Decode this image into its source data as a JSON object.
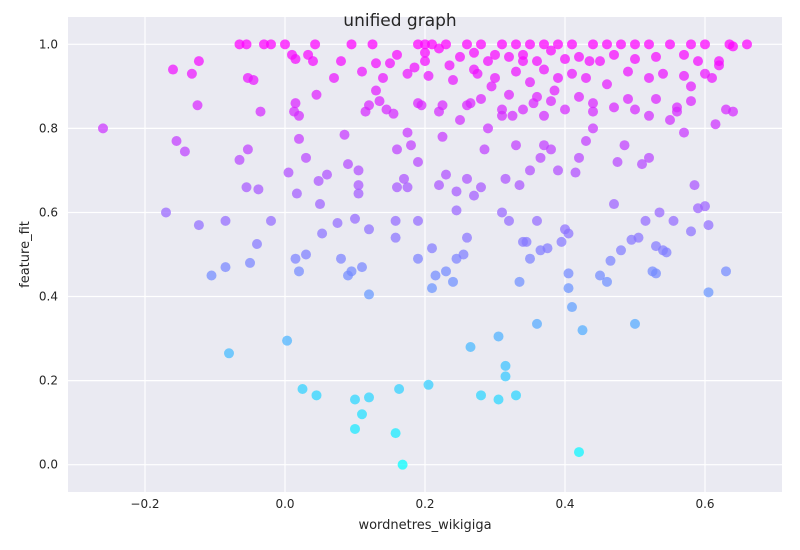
{
  "chart_data": {
    "type": "scatter",
    "title": "unified graph",
    "xlabel": "wordnetres_wikigiga",
    "ylabel": "feature_fit",
    "xlim": [
      -0.31,
      0.71
    ],
    "ylim": [
      -0.065,
      1.065
    ],
    "xticks": [
      -0.2,
      0.0,
      0.2,
      0.4,
      0.6
    ],
    "xtick_labels": [
      "−0.2",
      "0.0",
      "0.2",
      "0.4",
      "0.6"
    ],
    "yticks": [
      0.0,
      0.2,
      0.4,
      0.6,
      0.8,
      1.0
    ],
    "ytick_labels": [
      "0.0",
      "0.2",
      "0.4",
      "0.6",
      "0.8",
      "1.0"
    ],
    "grid": true,
    "colormap": "cool",
    "colors": {
      "background": "#EAEAF2",
      "grid": "#FFFFFF",
      "low": "#00FFFF",
      "high": "#FF00FF"
    },
    "points": [
      [
        -0.26,
        0.8
      ],
      [
        -0.17,
        0.6
      ],
      [
        -0.16,
        0.94
      ],
      [
        -0.155,
        0.77
      ],
      [
        -0.143,
        0.745
      ],
      [
        -0.133,
        0.93
      ],
      [
        -0.125,
        0.855
      ],
      [
        -0.123,
        0.96
      ],
      [
        -0.123,
        0.57
      ],
      [
        -0.105,
        0.45
      ],
      [
        -0.085,
        0.58
      ],
      [
        -0.085,
        0.47
      ],
      [
        -0.08,
        0.265
      ],
      [
        -0.065,
        1.0
      ],
      [
        -0.065,
        0.725
      ],
      [
        -0.055,
        1.0
      ],
      [
        -0.055,
        0.66
      ],
      [
        -0.053,
        0.75
      ],
      [
        -0.053,
        0.92
      ],
      [
        -0.05,
        0.48
      ],
      [
        -0.045,
        0.915
      ],
      [
        -0.04,
        0.525
      ],
      [
        -0.038,
        0.655
      ],
      [
        -0.035,
        0.84
      ],
      [
        -0.03,
        1.0
      ],
      [
        -0.02,
        1.0
      ],
      [
        -0.02,
        0.58
      ],
      [
        0.0,
        1.0
      ],
      [
        0.003,
        0.295
      ],
      [
        0.005,
        0.695
      ],
      [
        0.01,
        0.975
      ],
      [
        0.013,
        0.84
      ],
      [
        0.015,
        0.86
      ],
      [
        0.015,
        0.965
      ],
      [
        0.015,
        0.49
      ],
      [
        0.017,
        0.645
      ],
      [
        0.02,
        0.46
      ],
      [
        0.02,
        0.775
      ],
      [
        0.02,
        0.83
      ],
      [
        0.025,
        0.18
      ],
      [
        0.03,
        0.73
      ],
      [
        0.03,
        0.5
      ],
      [
        0.033,
        0.975
      ],
      [
        0.04,
        0.96
      ],
      [
        0.043,
        1.0
      ],
      [
        0.045,
        0.165
      ],
      [
        0.045,
        0.88
      ],
      [
        0.048,
        0.675
      ],
      [
        0.05,
        0.62
      ],
      [
        0.053,
        0.55
      ],
      [
        0.06,
        0.69
      ],
      [
        0.07,
        0.92
      ],
      [
        0.075,
        0.575
      ],
      [
        0.08,
        0.96
      ],
      [
        0.08,
        0.49
      ],
      [
        0.085,
        0.785
      ],
      [
        0.09,
        0.45
      ],
      [
        0.09,
        0.715
      ],
      [
        0.095,
        1.0
      ],
      [
        0.095,
        0.46
      ],
      [
        0.1,
        0.155
      ],
      [
        0.1,
        0.085
      ],
      [
        0.1,
        0.585
      ],
      [
        0.105,
        0.665
      ],
      [
        0.105,
        0.645
      ],
      [
        0.105,
        0.7
      ],
      [
        0.11,
        0.935
      ],
      [
        0.11,
        0.12
      ],
      [
        0.11,
        0.47
      ],
      [
        0.115,
        0.84
      ],
      [
        0.12,
        0.405
      ],
      [
        0.12,
        0.16
      ],
      [
        0.12,
        0.56
      ],
      [
        0.12,
        0.855
      ],
      [
        0.125,
        1.0
      ],
      [
        0.13,
        0.89
      ],
      [
        0.13,
        0.955
      ],
      [
        0.135,
        0.865
      ],
      [
        0.14,
        0.92
      ],
      [
        0.145,
        0.845
      ],
      [
        0.15,
        0.955
      ],
      [
        0.155,
        0.835
      ],
      [
        0.158,
        0.58
      ],
      [
        0.158,
        0.54
      ],
      [
        0.158,
        0.075
      ],
      [
        0.16,
        0.66
      ],
      [
        0.16,
        0.75
      ],
      [
        0.163,
        0.18
      ],
      [
        0.168,
        0.0
      ],
      [
        0.17,
        0.68
      ],
      [
        0.175,
        0.93
      ],
      [
        0.175,
        0.79
      ],
      [
        0.175,
        0.66
      ],
      [
        0.18,
        0.76
      ],
      [
        0.185,
        0.945
      ],
      [
        0.19,
        0.49
      ],
      [
        0.19,
        0.58
      ],
      [
        0.19,
        0.72
      ],
      [
        0.195,
        0.855
      ],
      [
        0.2,
        0.98
      ],
      [
        0.205,
        0.925
      ],
      [
        0.205,
        0.19
      ],
      [
        0.21,
        0.42
      ],
      [
        0.21,
        0.515
      ],
      [
        0.215,
        0.45
      ],
      [
        0.22,
        0.665
      ],
      [
        0.225,
        0.78
      ],
      [
        0.225,
        0.855
      ],
      [
        0.23,
        0.46
      ],
      [
        0.23,
        0.69
      ],
      [
        0.235,
        0.95
      ],
      [
        0.24,
        0.435
      ],
      [
        0.245,
        0.65
      ],
      [
        0.245,
        0.605
      ],
      [
        0.245,
        0.49
      ],
      [
        0.25,
        0.82
      ],
      [
        0.255,
        0.5
      ],
      [
        0.26,
        0.54
      ],
      [
        0.26,
        0.68
      ],
      [
        0.265,
        0.28
      ],
      [
        0.265,
        0.86
      ],
      [
        0.27,
        0.64
      ],
      [
        0.275,
        0.93
      ],
      [
        0.28,
        0.165
      ],
      [
        0.28,
        0.66
      ],
      [
        0.285,
        0.75
      ],
      [
        0.29,
        0.8
      ],
      [
        0.295,
        0.9
      ],
      [
        0.3,
        0.975
      ],
      [
        0.305,
        0.155
      ],
      [
        0.305,
        0.305
      ],
      [
        0.31,
        0.6
      ],
      [
        0.31,
        0.845
      ],
      [
        0.315,
        0.68
      ],
      [
        0.315,
        0.21
      ],
      [
        0.315,
        0.235
      ],
      [
        0.32,
        0.58
      ],
      [
        0.325,
        0.83
      ],
      [
        0.33,
        0.165
      ],
      [
        0.33,
        0.76
      ],
      [
        0.335,
        0.435
      ],
      [
        0.335,
        0.665
      ],
      [
        0.34,
        0.53
      ],
      [
        0.34,
        0.96
      ],
      [
        0.345,
        0.53
      ],
      [
        0.35,
        0.49
      ],
      [
        0.35,
        0.7
      ],
      [
        0.355,
        0.86
      ],
      [
        0.36,
        0.335
      ],
      [
        0.36,
        0.58
      ],
      [
        0.365,
        0.51
      ],
      [
        0.365,
        0.73
      ],
      [
        0.37,
        0.76
      ],
      [
        0.375,
        0.515
      ],
      [
        0.38,
        0.75
      ],
      [
        0.385,
        0.89
      ],
      [
        0.39,
        0.7
      ],
      [
        0.395,
        0.53
      ],
      [
        0.4,
        0.56
      ],
      [
        0.405,
        0.55
      ],
      [
        0.405,
        0.455
      ],
      [
        0.405,
        0.42
      ],
      [
        0.41,
        0.375
      ],
      [
        0.415,
        0.695
      ],
      [
        0.42,
        0.73
      ],
      [
        0.42,
        0.03
      ],
      [
        0.425,
        0.32
      ],
      [
        0.43,
        0.77
      ],
      [
        0.435,
        0.96
      ],
      [
        0.44,
        0.8
      ],
      [
        0.45,
        0.45
      ],
      [
        0.46,
        0.435
      ],
      [
        0.465,
        0.485
      ],
      [
        0.47,
        0.62
      ],
      [
        0.475,
        0.72
      ],
      [
        0.48,
        0.51
      ],
      [
        0.485,
        0.76
      ],
      [
        0.49,
        0.87
      ],
      [
        0.495,
        0.535
      ],
      [
        0.5,
        0.335
      ],
      [
        0.505,
        0.54
      ],
      [
        0.51,
        0.715
      ],
      [
        0.515,
        0.58
      ],
      [
        0.52,
        0.73
      ],
      [
        0.525,
        0.46
      ],
      [
        0.53,
        0.52
      ],
      [
        0.53,
        0.455
      ],
      [
        0.535,
        0.6
      ],
      [
        0.54,
        0.51
      ],
      [
        0.545,
        0.505
      ],
      [
        0.55,
        0.82
      ],
      [
        0.555,
        0.58
      ],
      [
        0.56,
        0.84
      ],
      [
        0.57,
        0.79
      ],
      [
        0.58,
        0.555
      ],
      [
        0.585,
        0.665
      ],
      [
        0.59,
        0.61
      ],
      [
        0.6,
        0.615
      ],
      [
        0.605,
        0.57
      ],
      [
        0.605,
        0.41
      ],
      [
        0.61,
        0.92
      ],
      [
        0.615,
        0.81
      ],
      [
        0.62,
        0.95
      ],
      [
        0.63,
        0.845
      ],
      [
        0.63,
        0.46
      ],
      [
        0.635,
        1.0
      ],
      [
        0.64,
        0.84
      ],
      [
        0.66,
        1.0
      ],
      [
        0.19,
        1.0
      ],
      [
        0.2,
        1.0
      ],
      [
        0.21,
        1.0
      ],
      [
        0.23,
        1.0
      ],
      [
        0.26,
        1.0
      ],
      [
        0.28,
        1.0
      ],
      [
        0.31,
        1.0
      ],
      [
        0.33,
        1.0
      ],
      [
        0.35,
        1.0
      ],
      [
        0.37,
        1.0
      ],
      [
        0.39,
        1.0
      ],
      [
        0.41,
        1.0
      ],
      [
        0.44,
        1.0
      ],
      [
        0.46,
        1.0
      ],
      [
        0.48,
        1.0
      ],
      [
        0.5,
        1.0
      ],
      [
        0.52,
        1.0
      ],
      [
        0.55,
        1.0
      ],
      [
        0.58,
        1.0
      ],
      [
        0.6,
        1.0
      ],
      [
        0.64,
        0.995
      ],
      [
        0.16,
        0.975
      ],
      [
        0.2,
        0.96
      ],
      [
        0.22,
        0.99
      ],
      [
        0.25,
        0.97
      ],
      [
        0.27,
        0.98
      ],
      [
        0.29,
        0.96
      ],
      [
        0.32,
        0.97
      ],
      [
        0.34,
        0.975
      ],
      [
        0.36,
        0.96
      ],
      [
        0.38,
        0.985
      ],
      [
        0.4,
        0.965
      ],
      [
        0.42,
        0.97
      ],
      [
        0.45,
        0.96
      ],
      [
        0.47,
        0.975
      ],
      [
        0.5,
        0.965
      ],
      [
        0.53,
        0.97
      ],
      [
        0.57,
        0.975
      ],
      [
        0.59,
        0.96
      ],
      [
        0.62,
        0.96
      ],
      [
        0.24,
        0.915
      ],
      [
        0.27,
        0.94
      ],
      [
        0.3,
        0.92
      ],
      [
        0.33,
        0.935
      ],
      [
        0.35,
        0.91
      ],
      [
        0.37,
        0.94
      ],
      [
        0.39,
        0.92
      ],
      [
        0.41,
        0.93
      ],
      [
        0.43,
        0.92
      ],
      [
        0.46,
        0.905
      ],
      [
        0.49,
        0.935
      ],
      [
        0.52,
        0.92
      ],
      [
        0.54,
        0.93
      ],
      [
        0.57,
        0.925
      ],
      [
        0.6,
        0.93
      ],
      [
        0.58,
        0.9
      ],
      [
        0.19,
        0.86
      ],
      [
        0.22,
        0.84
      ],
      [
        0.26,
        0.855
      ],
      [
        0.28,
        0.87
      ],
      [
        0.32,
        0.88
      ],
      [
        0.34,
        0.845
      ],
      [
        0.36,
        0.875
      ],
      [
        0.38,
        0.865
      ],
      [
        0.4,
        0.845
      ],
      [
        0.42,
        0.875
      ],
      [
        0.44,
        0.86
      ],
      [
        0.47,
        0.85
      ],
      [
        0.5,
        0.845
      ],
      [
        0.53,
        0.87
      ],
      [
        0.56,
        0.85
      ],
      [
        0.58,
        0.865
      ],
      [
        0.52,
        0.83
      ],
      [
        0.37,
        0.83
      ],
      [
        0.31,
        0.83
      ],
      [
        0.44,
        0.84
      ]
    ]
  }
}
